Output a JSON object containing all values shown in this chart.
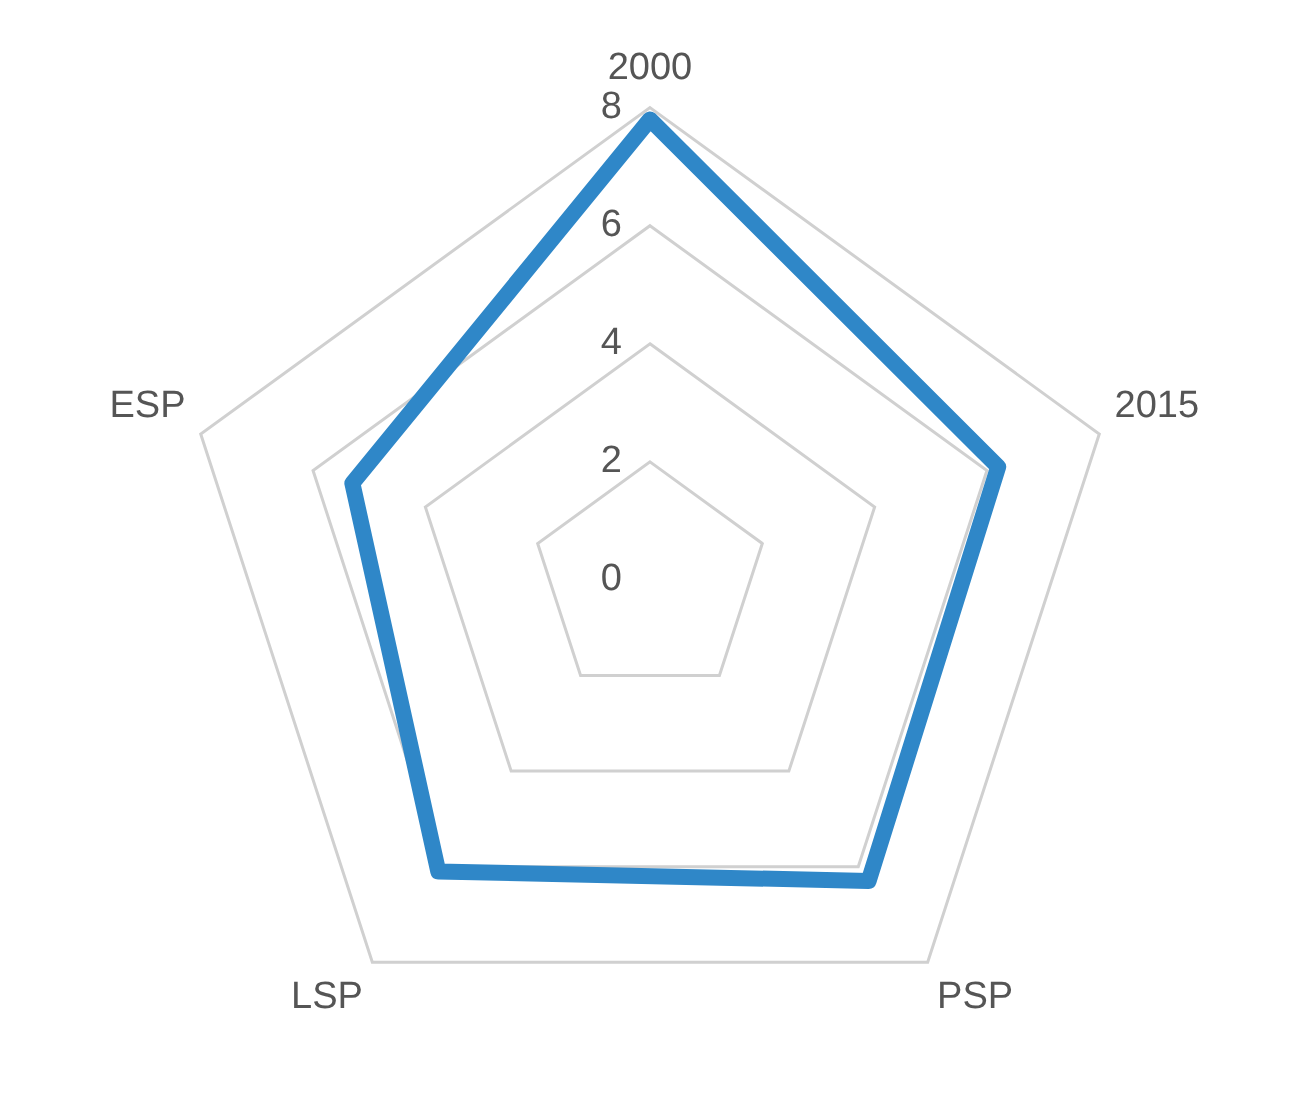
{
  "chart_data": {
    "type": "radar",
    "categories": [
      "2000",
      "2015",
      "PSP",
      "LSP",
      "ESP"
    ],
    "series": [
      {
        "color": "#2f87c8",
        "values": [
          7.8,
          6.2,
          6.3,
          6.1,
          5.3
        ]
      }
    ],
    "ylim": [
      0,
      8
    ],
    "yticks": [
      0,
      2,
      4,
      6,
      8
    ],
    "grid": true,
    "legend": false,
    "marker": "none"
  }
}
